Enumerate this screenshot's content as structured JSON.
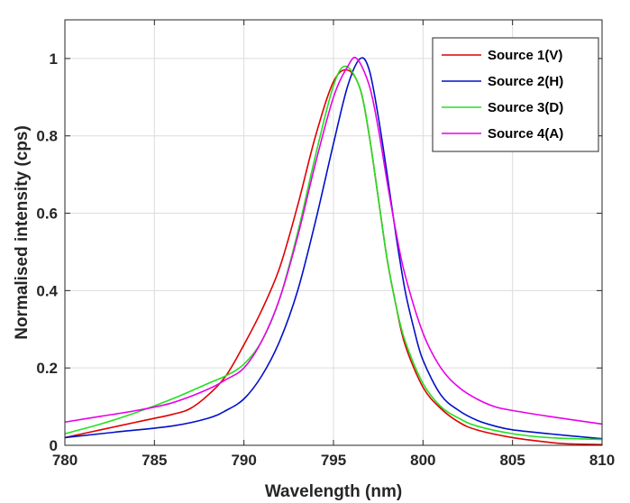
{
  "chart_data": {
    "type": "line",
    "title": "",
    "xlabel": "Wavelength (nm)",
    "ylabel": "Normalised intensity (cps)",
    "xlim": [
      780,
      810
    ],
    "ylim": [
      0,
      1.1
    ],
    "grid": true,
    "legend_position": "top-right",
    "xticks": [
      "780",
      "785",
      "790",
      "795",
      "800",
      "805",
      "810"
    ],
    "yticks": [
      "0",
      "0.2",
      "0.4",
      "0.6",
      "0.8",
      "1"
    ],
    "series": [
      {
        "name": "Source 1(V)",
        "color": "#e00000",
        "x": [
          780,
          782,
          784,
          786,
          787,
          788,
          789,
          790,
          791,
          792,
          793,
          794,
          795,
          795.8,
          796.5,
          797,
          797.5,
          798,
          798.5,
          799,
          800,
          801,
          802,
          803,
          805,
          807,
          808,
          810
        ],
        "y": [
          0.02,
          0.04,
          0.06,
          0.08,
          0.095,
          0.13,
          0.18,
          0.26,
          0.35,
          0.46,
          0.62,
          0.8,
          0.94,
          0.97,
          0.92,
          0.8,
          0.64,
          0.48,
          0.36,
          0.26,
          0.15,
          0.095,
          0.06,
          0.04,
          0.02,
          0.008,
          0.004,
          0.002
        ]
      },
      {
        "name": "Source 2(H)",
        "color": "#0010c8",
        "x": [
          780,
          783,
          786,
          788,
          789,
          790,
          791,
          792,
          793,
          794,
          795,
          795.8,
          796.5,
          797,
          797.5,
          798,
          798.5,
          799,
          799.5,
          800,
          801,
          802,
          803,
          804,
          805,
          807,
          810
        ],
        "y": [
          0.02,
          0.035,
          0.05,
          0.07,
          0.09,
          0.12,
          0.18,
          0.27,
          0.4,
          0.58,
          0.78,
          0.93,
          1.0,
          0.97,
          0.85,
          0.7,
          0.54,
          0.4,
          0.3,
          0.22,
          0.13,
          0.09,
          0.065,
          0.05,
          0.04,
          0.03,
          0.017
        ]
      },
      {
        "name": "Source 3(D)",
        "color": "#22e022",
        "x": [
          780,
          782,
          784,
          786,
          788,
          789,
          790,
          791,
          792,
          793,
          794,
          795,
          795.7,
          796.5,
          797,
          797.5,
          798,
          798.5,
          799,
          800,
          801,
          802,
          803,
          805,
          807,
          810
        ],
        "y": [
          0.03,
          0.055,
          0.085,
          0.12,
          0.16,
          0.18,
          0.21,
          0.27,
          0.38,
          0.55,
          0.75,
          0.93,
          0.98,
          0.92,
          0.8,
          0.64,
          0.48,
          0.36,
          0.27,
          0.16,
          0.1,
          0.07,
          0.05,
          0.03,
          0.02,
          0.015
        ]
      },
      {
        "name": "Source 4(A)",
        "color": "#e800e8",
        "x": [
          780,
          782,
          784,
          786,
          788,
          789,
          790,
          791,
          792,
          793,
          794,
          795,
          795.8,
          796.3,
          797,
          797.5,
          798,
          798.5,
          799,
          800,
          801,
          802,
          803,
          804,
          805,
          807,
          810
        ],
        "y": [
          0.06,
          0.075,
          0.09,
          0.11,
          0.145,
          0.17,
          0.2,
          0.27,
          0.38,
          0.54,
          0.73,
          0.9,
          0.98,
          1.0,
          0.93,
          0.82,
          0.68,
          0.55,
          0.44,
          0.29,
          0.2,
          0.15,
          0.12,
          0.1,
          0.09,
          0.075,
          0.055
        ]
      }
    ]
  }
}
